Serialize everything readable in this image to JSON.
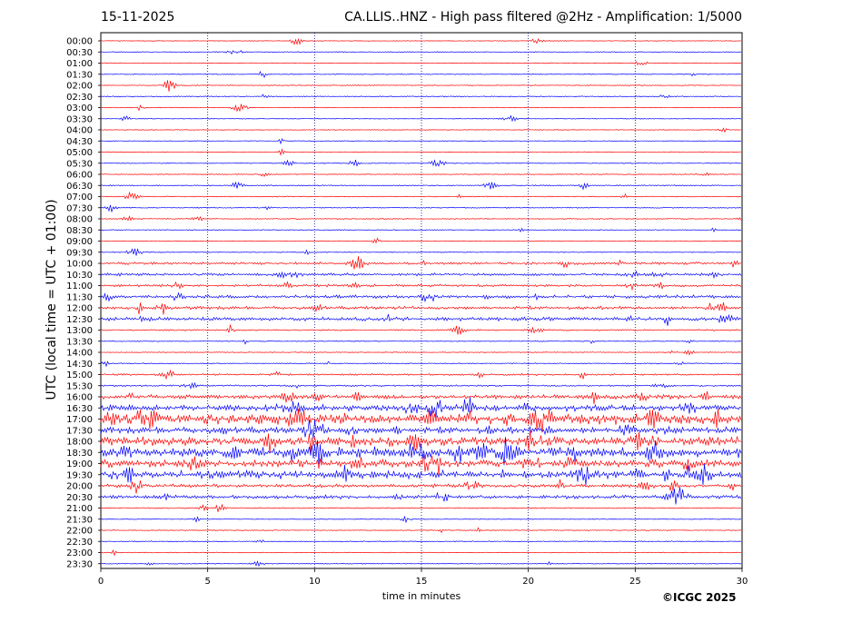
{
  "header": {
    "date": "15-11-2025",
    "title": "CA.LLIS..HNZ - High pass filtered @2Hz - Amplification: 1/5000"
  },
  "footer": {
    "copyright": "©ICGC 2025"
  },
  "chart_data": {
    "type": "line",
    "title": "CA.LLIS..HNZ - High pass filtered @2Hz - Amplification: 1/5000",
    "xlabel": "time in minutes",
    "ylabel": "UTC (local time = UTC + 01:00)",
    "xlim": [
      0,
      30
    ],
    "x_ticks": [
      0,
      5,
      10,
      15,
      20,
      25,
      30
    ],
    "vertical_gridlines": [
      5,
      10,
      15,
      20,
      25
    ],
    "row_labels": [
      "00:00",
      "00:30",
      "01:00",
      "01:30",
      "02:00",
      "02:30",
      "03:00",
      "03:30",
      "04:00",
      "04:30",
      "05:00",
      "05:30",
      "06:00",
      "06:30",
      "07:00",
      "07:30",
      "08:00",
      "08:30",
      "09:00",
      "09:30",
      "10:00",
      "10:30",
      "11:00",
      "11:30",
      "12:00",
      "12:30",
      "13:00",
      "13:30",
      "14:00",
      "14:30",
      "15:00",
      "15:30",
      "16:00",
      "16:30",
      "17:00",
      "17:30",
      "18:00",
      "18:30",
      "19:00",
      "19:30",
      "20:00",
      "20:30",
      "21:00",
      "21:30",
      "22:00",
      "22:30",
      "23:00",
      "23:30"
    ],
    "trace_colors": [
      "#ff0000",
      "#0000ff"
    ],
    "activity": [
      0.03,
      0.04,
      0.04,
      0.06,
      0.05,
      0.06,
      0.03,
      0.03,
      0.03,
      0.03,
      0.05,
      0.06,
      0.05,
      0.07,
      0.06,
      0.07,
      0.06,
      0.05,
      0.05,
      0.06,
      0.22,
      0.25,
      0.22,
      0.28,
      0.28,
      0.32,
      0.12,
      0.06,
      0.05,
      0.06,
      0.14,
      0.12,
      0.4,
      0.6,
      1.0,
      0.6,
      0.85,
      0.95,
      0.7,
      0.75,
      0.3,
      0.32,
      0.08,
      0.05,
      0.05,
      0.05,
      0.04,
      0.04
    ]
  }
}
